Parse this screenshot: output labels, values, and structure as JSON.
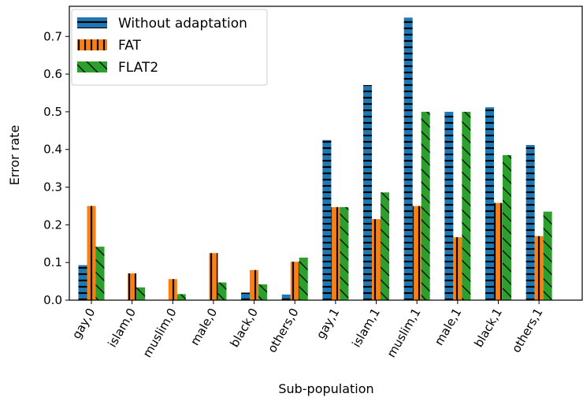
{
  "chart_data": {
    "type": "bar",
    "title": "",
    "xlabel": "Sub-population",
    "ylabel": "Error rate",
    "ylim": [
      0,
      0.78
    ],
    "yticks": [
      0.0,
      0.1,
      0.2,
      0.3,
      0.4,
      0.5,
      0.6,
      0.7
    ],
    "ytick_labels": [
      "0.0",
      "0.1",
      "0.2",
      "0.3",
      "0.4",
      "0.5",
      "0.6",
      "0.7"
    ],
    "categories": [
      "gay,0",
      "islam,0",
      "muslim,0",
      "male,0",
      "black,0",
      "others,0",
      "gay,1",
      "islam,1",
      "muslim,1",
      "male,1",
      "black,1",
      "others,1"
    ],
    "series": [
      {
        "name": "Without adaptation",
        "color": "#1f77b4",
        "hatch": "horizontal",
        "values": [
          0.093,
          0.0,
          0.0,
          0.0,
          0.02,
          0.015,
          0.425,
          0.571,
          0.75,
          0.5,
          0.512,
          0.412
        ]
      },
      {
        "name": "FAT",
        "color": "#ff7f0e",
        "hatch": "vertical",
        "values": [
          0.25,
          0.071,
          0.056,
          0.125,
          0.08,
          0.102,
          0.247,
          0.215,
          0.25,
          0.167,
          0.258,
          0.17
        ]
      },
      {
        "name": "FLAT2",
        "color": "#2ca02c",
        "hatch": "diagonal",
        "values": [
          0.142,
          0.034,
          0.016,
          0.047,
          0.042,
          0.113,
          0.247,
          0.286,
          0.5,
          0.5,
          0.385,
          0.235
        ]
      }
    ],
    "legend_position": "top-left",
    "grid": false
  }
}
